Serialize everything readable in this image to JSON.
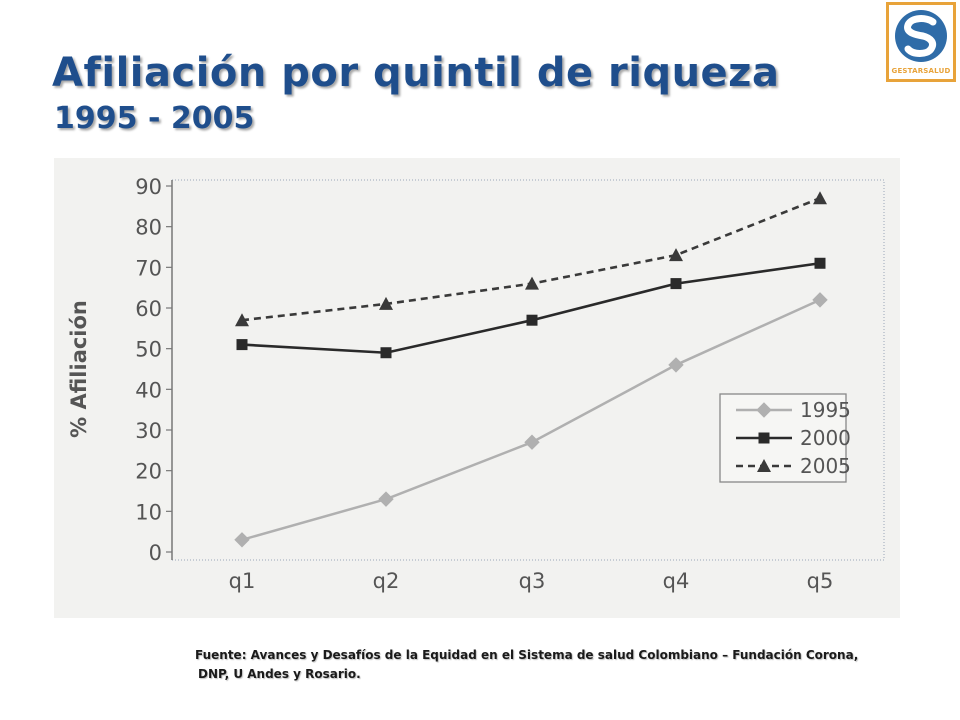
{
  "header": {
    "title": "Afiliación por quintil de riqueza",
    "subtitle": "1995 - 2005"
  },
  "logo": {
    "text": "GESTARSALUD",
    "icon": "gestarsalud-logo-icon",
    "colors": {
      "blue": "#2f6ca8",
      "orange": "#e8a33a"
    }
  },
  "chart_data": {
    "type": "line",
    "title": "",
    "xlabel": "",
    "ylabel": "% Afiliación",
    "categories": [
      "q1",
      "q2",
      "q3",
      "q4",
      "q5"
    ],
    "ylim": [
      0,
      90
    ],
    "yticks": [
      0,
      10,
      20,
      30,
      40,
      50,
      60,
      70,
      80,
      90
    ],
    "grid": false,
    "legend_position": "bottom-right",
    "series": [
      {
        "name": "1995",
        "values": [
          3,
          13,
          27,
          46,
          62
        ],
        "style": "solid",
        "marker": "diamond",
        "color": "#b0b0b0"
      },
      {
        "name": "2000",
        "values": [
          51,
          49,
          57,
          66,
          71
        ],
        "style": "solid",
        "marker": "square",
        "color": "#2a2a2a"
      },
      {
        "name": "2005",
        "values": [
          57,
          61,
          66,
          73,
          87
        ],
        "style": "dashed",
        "marker": "triangle",
        "color": "#3a3a3a"
      }
    ]
  },
  "footer": {
    "source_line1": "Fuente: Avances y Desafíos de la Equidad en el Sistema de salud Colombiano – Fundación Corona,",
    "source_line2": "DNP, U Andes y Rosario."
  },
  "colors": {
    "title": "#1f4e8c",
    "panel": "#f2f2f0"
  }
}
